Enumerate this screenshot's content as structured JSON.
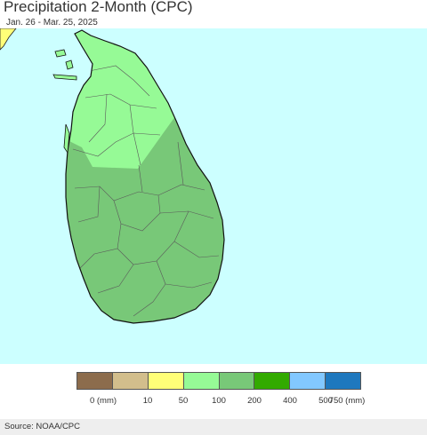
{
  "header": {
    "title": "Precipitation 2-Month (CPC)",
    "subtitle": "Jan. 26 - Mar. 25, 2025"
  },
  "map": {
    "region": "Sri Lanka",
    "ocean_color": "#ccffff",
    "land_dominant_class": "200-400 mm",
    "north_class": "100-200 mm"
  },
  "legend": {
    "colors": [
      "#8c6c4c",
      "#d2be8c",
      "#ffff78",
      "#96fa96",
      "#78c878",
      "#32aa00",
      "#82c8ff",
      "#1e78be"
    ],
    "labels": [
      "0 (mm)",
      "10",
      "50",
      "100",
      "200",
      "400",
      "500",
      "750 (mm)"
    ]
  },
  "footer": {
    "source": "Source: NOAA/CPC"
  }
}
